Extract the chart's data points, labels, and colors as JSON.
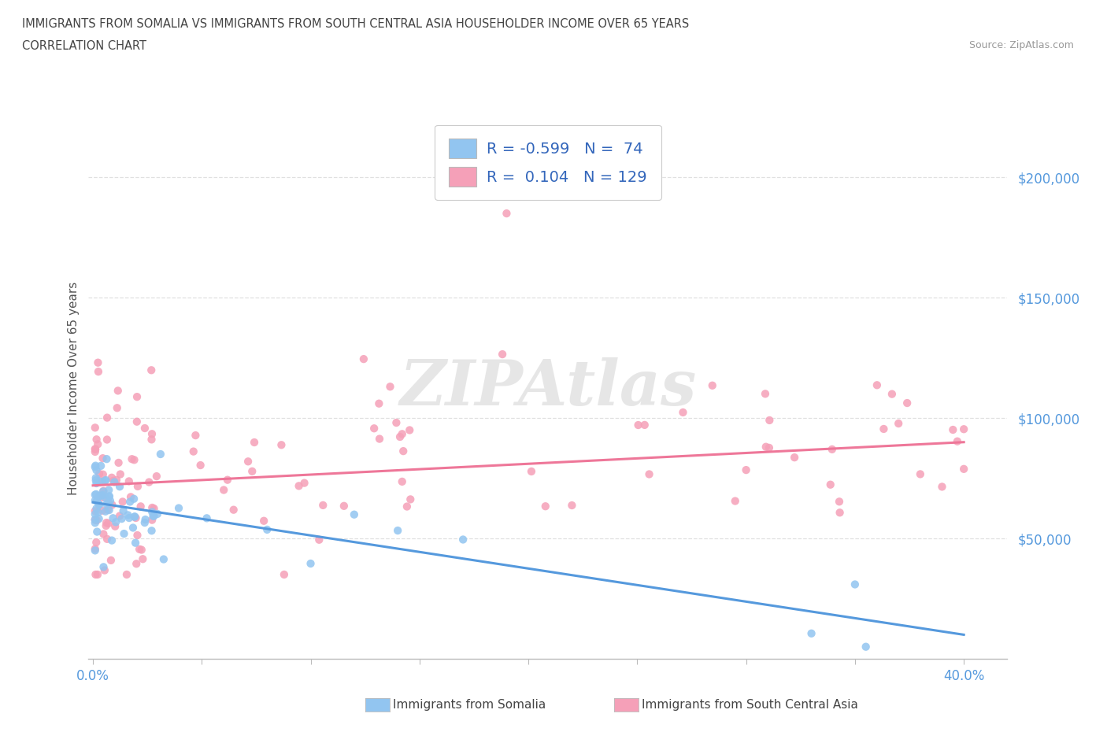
{
  "title_line1": "IMMIGRANTS FROM SOMALIA VS IMMIGRANTS FROM SOUTH CENTRAL ASIA HOUSEHOLDER INCOME OVER 65 YEARS",
  "title_line2": "CORRELATION CHART",
  "source": "Source: ZipAtlas.com",
  "ylabel": "Householder Income Over 65 years",
  "ylim": [
    0,
    225000
  ],
  "xlim": [
    -0.002,
    0.42
  ],
  "yticks": [
    50000,
    100000,
    150000,
    200000
  ],
  "ytick_labels": [
    "$50,000",
    "$100,000",
    "$150,000",
    "$200,000"
  ],
  "xtick_positions": [
    0.0,
    0.05,
    0.1,
    0.15,
    0.2,
    0.25,
    0.3,
    0.35,
    0.4
  ],
  "somalia_color": "#92c5f0",
  "somalia_line_color": "#5599dd",
  "south_asia_color": "#f5a0b8",
  "south_asia_line_color": "#ee7799",
  "R_somalia": -0.599,
  "N_somalia": 74,
  "R_south_asia": 0.104,
  "N_south_asia": 129,
  "watermark": "ZIPAtlas",
  "background_color": "#ffffff",
  "grid_color": "#dddddd",
  "title_color": "#444444",
  "axis_label_color": "#5599dd",
  "somalia_line_x0": 0.0,
  "somalia_line_y0": 65000,
  "somalia_line_x1": 0.4,
  "somalia_line_y1": 10000,
  "south_asia_line_x0": 0.0,
  "south_asia_line_y0": 72000,
  "south_asia_line_x1": 0.4,
  "south_asia_line_y1": 90000
}
